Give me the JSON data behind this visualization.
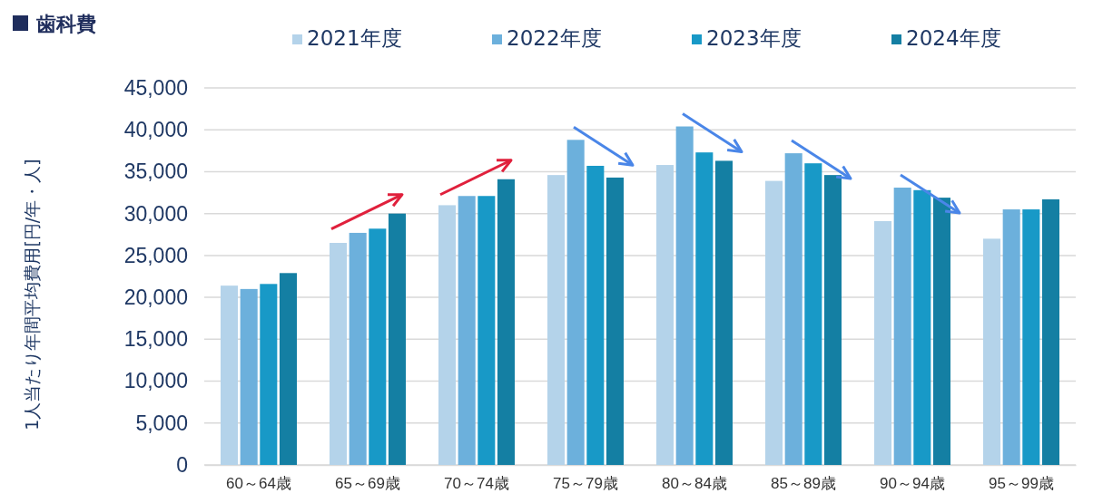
{
  "chart_data": {
    "type": "bar",
    "title": "歯科費",
    "ylabel": "1人当たり年間平均費用[円/年・人]",
    "categories": [
      "60～64歳",
      "65～69歳",
      "70～74歳",
      "75～79歳",
      "80～84歳",
      "85～89歳",
      "90～94歳",
      "95～99歳"
    ],
    "series": [
      {
        "name": "2021年度",
        "color": "#b4d3ea",
        "values": [
          21400,
          26500,
          31000,
          34600,
          35800,
          33900,
          29100,
          27000
        ]
      },
      {
        "name": "2022年度",
        "color": "#6cb0dc",
        "values": [
          21000,
          27700,
          32100,
          38800,
          40400,
          37200,
          33100,
          30500
        ]
      },
      {
        "name": "2023年度",
        "color": "#1899c7",
        "values": [
          21600,
          28200,
          32100,
          35700,
          37300,
          36000,
          32800,
          30500
        ]
      },
      {
        "name": "2024年度",
        "color": "#147fa3",
        "values": [
          22900,
          30000,
          34100,
          34300,
          36300,
          34600,
          31900,
          31700
        ]
      }
    ],
    "ylim": [
      0,
      45000
    ],
    "yticks": [
      {
        "value": 0,
        "label": "0"
      },
      {
        "value": 5000,
        "label": "5,000"
      },
      {
        "value": 10000,
        "label": "10,000"
      },
      {
        "value": 15000,
        "label": "15,000"
      },
      {
        "value": 20000,
        "label": "20,000"
      },
      {
        "value": 25000,
        "label": "25,000"
      },
      {
        "value": 30000,
        "label": "30,000"
      },
      {
        "value": 35000,
        "label": "35,000"
      },
      {
        "value": 40000,
        "label": "40,000"
      },
      {
        "value": 45000,
        "label": "45,000"
      }
    ],
    "grid": "y",
    "legend": "top"
  }
}
